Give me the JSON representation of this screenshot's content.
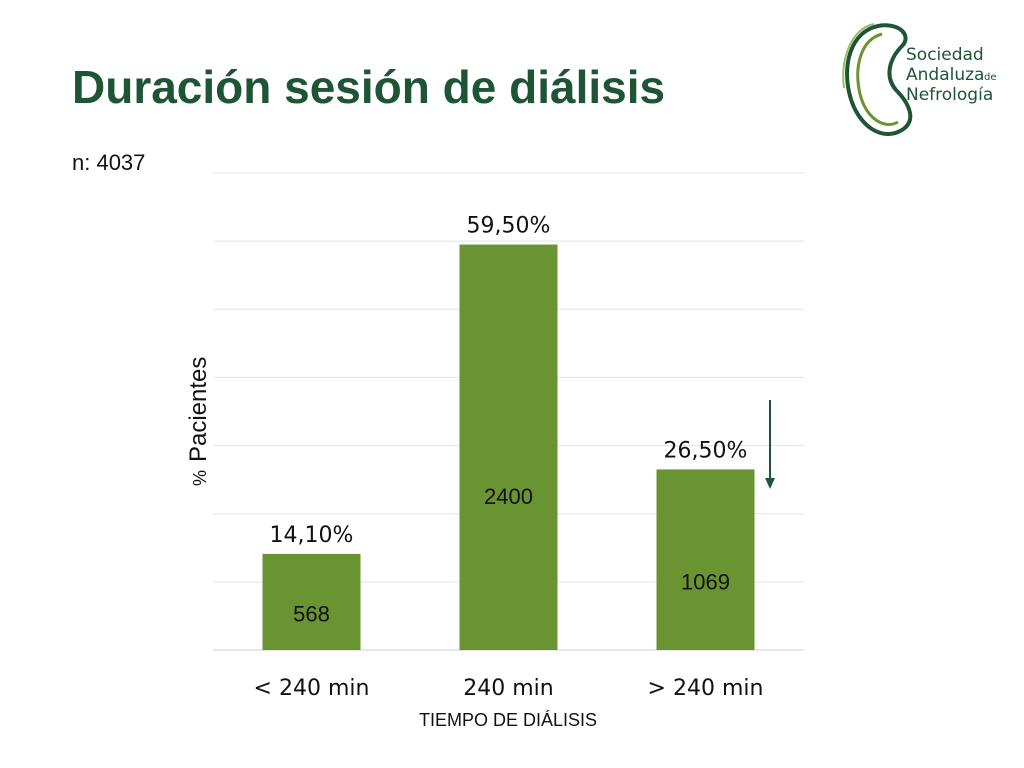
{
  "slide": {
    "title": "Duración sesión de diálisis",
    "sample_size": "n: 4037"
  },
  "logo": {
    "line1": "Sociedad",
    "line2": "Andaluza",
    "line2_small": "de",
    "line3": "Nefrología",
    "icon": "kidney-logo-icon",
    "color": "#1e5535"
  },
  "chart_data": {
    "type": "bar",
    "categories": [
      "< 240 min",
      "240 min",
      "> 240 min"
    ],
    "values": [
      14.1,
      59.5,
      26.5
    ],
    "value_labels": [
      "14,10%",
      "59,50%",
      "26,50%"
    ],
    "counts": [
      "568",
      "2400",
      "1069"
    ],
    "xlabel": "TIEMPO DE DIÁLISIS",
    "ylabel": "% Pacientes",
    "ylabel_prefix": "%",
    "ylabel_main": "Pacientes",
    "ylim": [
      0,
      70
    ],
    "grid": true,
    "bar_color": "#6a9331",
    "annotation": "downward arrow beside > 240 min bar",
    "annotation_color": "#1e5535"
  }
}
